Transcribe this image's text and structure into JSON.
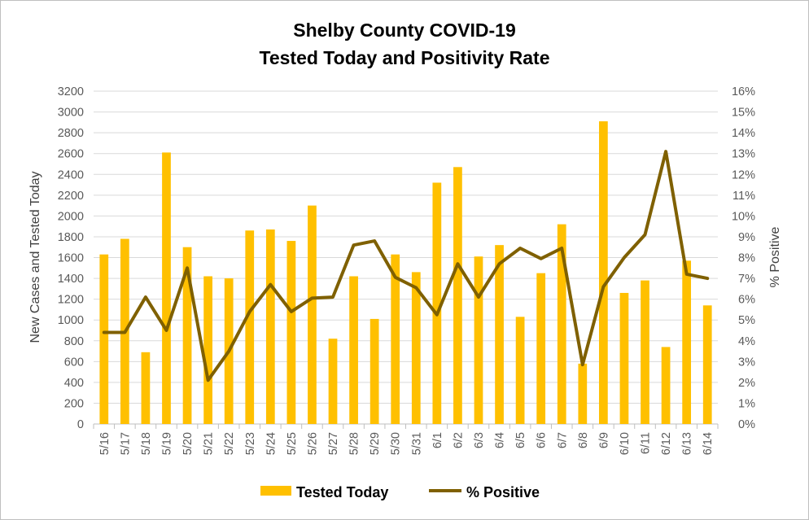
{
  "chart_data": {
    "type": "bar+line",
    "title_line1": "Shelby County COVID-19",
    "title_line2": "Tested Today and Positivity Rate",
    "categories": [
      "5/16",
      "5/17",
      "5/18",
      "5/19",
      "5/20",
      "5/21",
      "5/22",
      "5/23",
      "5/24",
      "5/25",
      "5/26",
      "5/27",
      "5/28",
      "5/29",
      "5/30",
      "5/31",
      "6/1",
      "6/2",
      "6/3",
      "6/4",
      "6/5",
      "6/6",
      "6/7",
      "6/8",
      "6/9",
      "6/10",
      "6/11",
      "6/12",
      "6/13",
      "6/14"
    ],
    "ylabel_left": "New Cases and Tested Today",
    "ylabel_right": "% Positive",
    "ylim_left": [
      0,
      3200
    ],
    "ylim_right": [
      0,
      16
    ],
    "yticks_left": [
      "0",
      "200",
      "400",
      "600",
      "800",
      "1000",
      "1200",
      "1400",
      "1600",
      "1800",
      "2000",
      "2200",
      "2400",
      "2600",
      "2800",
      "3000",
      "3200"
    ],
    "yticks_right": [
      "0%",
      "1%",
      "2%",
      "3%",
      "4%",
      "5%",
      "6%",
      "7%",
      "8%",
      "9%",
      "10%",
      "11%",
      "12%",
      "13%",
      "14%",
      "15%",
      "16%"
    ],
    "series": [
      {
        "name": "Tested Today",
        "kind": "bar",
        "color": "#FFC000",
        "axis": "left",
        "values": [
          1630,
          1780,
          690,
          2610,
          1700,
          1420,
          1400,
          1860,
          1870,
          1760,
          2100,
          820,
          1420,
          1010,
          1630,
          1460,
          2320,
          2470,
          1610,
          1720,
          1030,
          1450,
          1920,
          580,
          2910,
          1260,
          1380,
          740,
          1570,
          1140
        ]
      },
      {
        "name": "% Positive",
        "kind": "line",
        "color": "#7F6000",
        "axis": "right",
        "values": [
          4.4,
          4.4,
          6.1,
          4.5,
          7.5,
          2.1,
          3.5,
          5.4,
          6.7,
          5.4,
          6.05,
          6.1,
          8.6,
          8.8,
          7.05,
          6.55,
          5.25,
          7.7,
          6.1,
          7.7,
          8.45,
          7.95,
          8.45,
          2.85,
          6.6,
          8.0,
          9.1,
          13.1,
          7.2,
          7.0
        ]
      }
    ],
    "legend": {
      "position": "bottom"
    },
    "grid": true
  }
}
